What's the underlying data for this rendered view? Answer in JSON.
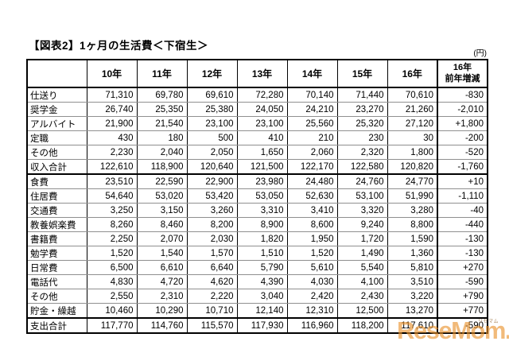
{
  "page": {
    "title": "【図表2】1ヶ月の生活費＜下宿生＞",
    "unit_note": "(円)"
  },
  "watermark": {
    "text": "ReseMom.",
    "subtext": "リセマム",
    "color": "#E89028"
  },
  "chart_data": {
    "type": "table",
    "title": "【図表2】1ヶ月の生活費＜下宿生＞",
    "unit": "円",
    "columns": [
      "10年",
      "11年",
      "12年",
      "13年",
      "14年",
      "15年",
      "16年"
    ],
    "last_column_lines": [
      "16年",
      "前年増減"
    ],
    "rows": [
      {
        "label": "仕送り",
        "values": [
          "71,310",
          "69,780",
          "69,610",
          "72,280",
          "70,140",
          "71,440",
          "70,610",
          "-830"
        ],
        "total": false
      },
      {
        "label": "奨学金",
        "values": [
          "26,740",
          "25,350",
          "25,380",
          "24,050",
          "24,210",
          "23,270",
          "21,260",
          "-2,010"
        ],
        "total": false
      },
      {
        "label": "アルバイト",
        "values": [
          "21,900",
          "21,540",
          "23,100",
          "23,100",
          "25,560",
          "25,320",
          "27,120",
          "+1,800"
        ],
        "total": false
      },
      {
        "label": "定職",
        "values": [
          "430",
          "180",
          "500",
          "410",
          "210",
          "230",
          "30",
          "-200"
        ],
        "total": false
      },
      {
        "label": "その他",
        "values": [
          "2,230",
          "2,040",
          "2,050",
          "1,650",
          "2,060",
          "2,320",
          "1,800",
          "-520"
        ],
        "total": false
      },
      {
        "label": "収入合計",
        "values": [
          "122,610",
          "118,900",
          "120,640",
          "121,500",
          "122,170",
          "122,580",
          "120,820",
          "-1,760"
        ],
        "total": true
      },
      {
        "label": "食費",
        "values": [
          "23,510",
          "22,590",
          "22,900",
          "23,980",
          "24,480",
          "24,760",
          "24,770",
          "+10"
        ],
        "total": false
      },
      {
        "label": "住居費",
        "values": [
          "54,640",
          "53,020",
          "53,420",
          "53,050",
          "52,630",
          "53,100",
          "51,990",
          "-1,110"
        ],
        "total": false
      },
      {
        "label": "交通費",
        "values": [
          "3,250",
          "3,150",
          "3,260",
          "3,310",
          "3,410",
          "3,320",
          "3,280",
          "-40"
        ],
        "total": false
      },
      {
        "label": "教養娯楽費",
        "values": [
          "8,260",
          "8,460",
          "8,200",
          "8,900",
          "8,600",
          "9,240",
          "8,800",
          "-440"
        ],
        "total": false
      },
      {
        "label": "書籍費",
        "values": [
          "2,250",
          "2,070",
          "2,030",
          "1,820",
          "1,950",
          "1,720",
          "1,590",
          "-130"
        ],
        "total": false
      },
      {
        "label": "勉学費",
        "values": [
          "1,520",
          "1,540",
          "1,570",
          "1,510",
          "1,520",
          "1,490",
          "1,360",
          "-130"
        ],
        "total": false
      },
      {
        "label": "日常費",
        "values": [
          "6,500",
          "6,610",
          "6,640",
          "5,790",
          "5,610",
          "5,540",
          "5,810",
          "+270"
        ],
        "total": false
      },
      {
        "label": "電話代",
        "values": [
          "4,830",
          "4,720",
          "4,620",
          "4,390",
          "4,030",
          "4,100",
          "3,510",
          "-590"
        ],
        "total": false
      },
      {
        "label": "その他",
        "values": [
          "2,550",
          "2,310",
          "2,220",
          "3,040",
          "2,420",
          "2,430",
          "3,220",
          "+790"
        ],
        "total": false
      },
      {
        "label": "貯金・繰越",
        "values": [
          "10,460",
          "10,290",
          "10,710",
          "12,140",
          "12,310",
          "12,500",
          "13,270",
          "+770"
        ],
        "total": false
      },
      {
        "label": "支出合計",
        "values": [
          "117,770",
          "114,760",
          "115,570",
          "117,930",
          "116,960",
          "118,200",
          "117,610",
          "-590"
        ],
        "total": true
      }
    ]
  }
}
